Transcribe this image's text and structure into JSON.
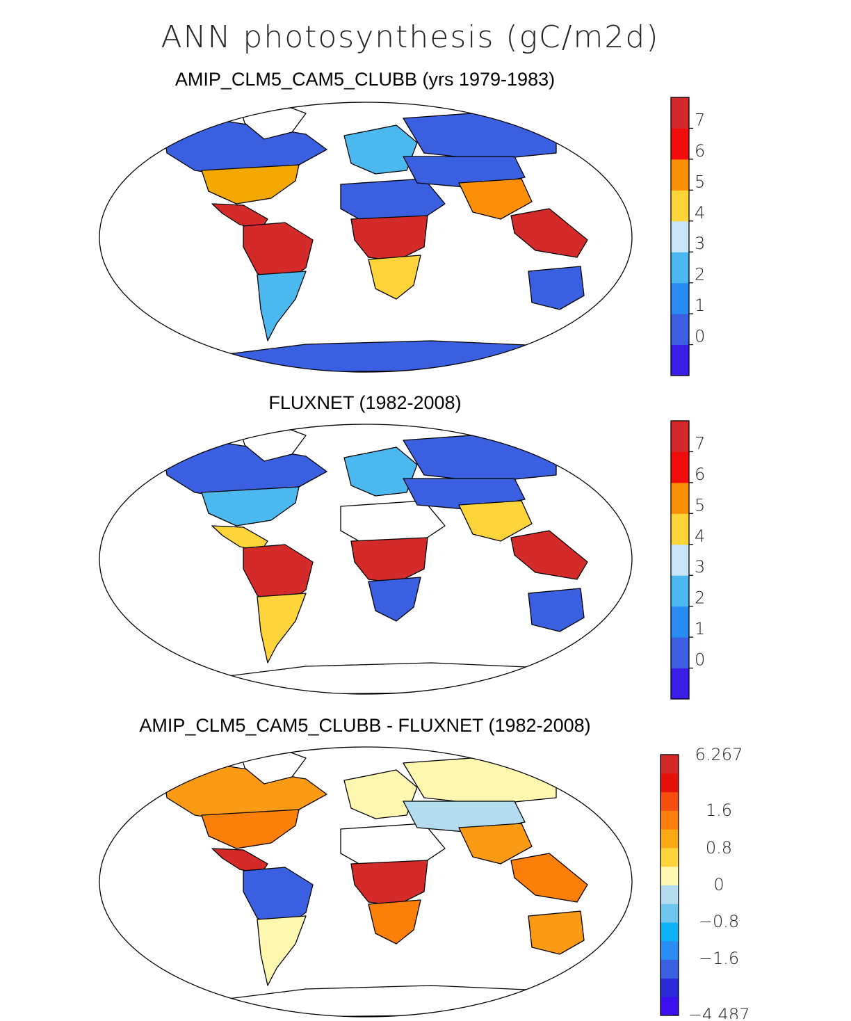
{
  "header": {
    "title": "ANN photosynthesis (gC/m2d)"
  },
  "panels": [
    {
      "id": "model",
      "title": "AMIP_CLM5_CAM5_CLUBB (yrs 1979-1983)",
      "colorbar": {
        "colors": [
          "#3a1de6",
          "#3a5fe0",
          "#2a8cf2",
          "#4cb8f0",
          "#c8e6f7",
          "#fdd53a",
          "#fb8f08",
          "#f20d0d",
          "#d42a2a"
        ],
        "labels": [
          "0",
          "1",
          "2",
          "3",
          "4",
          "5",
          "6",
          "7"
        ]
      },
      "regions": {
        "canada": "#3a5fe0",
        "usa_east": "#f2a800",
        "mexico": "#d42a2a",
        "amazon": "#d42a2a",
        "south_america_south": "#4cb8f0",
        "greenland": "#ffffff",
        "europe": "#4cb8f0",
        "sahara": "#3a5fe0",
        "africa_tropics": "#d42a2a",
        "southern_africa": "#fdd53a",
        "siberia": "#3a5fe0",
        "central_asia": "#3a5fe0",
        "south_asia": "#fb8f08",
        "southeast_asia": "#d42a2a",
        "australia": "#3a5fe0",
        "antarctica": "#3a5fe0"
      }
    },
    {
      "id": "obs",
      "title": "FLUXNET (1982-2008)",
      "colorbar": {
        "colors": [
          "#3a1de6",
          "#3a5fe0",
          "#2a8cf2",
          "#4cb8f0",
          "#c8e6f7",
          "#fdd53a",
          "#fb8f08",
          "#f20d0d",
          "#d42a2a"
        ],
        "labels": [
          "0",
          "1",
          "2",
          "3",
          "4",
          "5",
          "6",
          "7"
        ]
      },
      "regions": {
        "canada": "#3a5fe0",
        "usa_east": "#4cb8f0",
        "mexico": "#fdd53a",
        "amazon": "#d42a2a",
        "south_america_south": "#fdd53a",
        "greenland": "#ffffff",
        "europe": "#4cb8f0",
        "sahara": "#ffffff",
        "africa_tropics": "#d42a2a",
        "southern_africa": "#3a5fe0",
        "siberia": "#3a5fe0",
        "central_asia": "#3a5fe0",
        "south_asia": "#fdd53a",
        "southeast_asia": "#d42a2a",
        "australia": "#3a5fe0",
        "antarctica": "#ffffff"
      }
    },
    {
      "id": "diff",
      "title": "AMIP_CLM5_CAM5_CLUBB - FLUXNET (1982-2008)",
      "colorbar": {
        "colors": [
          "#3c0ef0",
          "#2a2ad8",
          "#3a5fe0",
          "#2a8cf2",
          "#0cb2f8",
          "#6ec6ef",
          "#b3dcef",
          "#fef7b0",
          "#fdd53a",
          "#fbaa14",
          "#fb7f08",
          "#f54e0e",
          "#e6100a",
          "#d42a2a"
        ],
        "labels": [
          "6.267",
          "1.6",
          "0.8",
          "0",
          "−0.8",
          "−1.6",
          "−4.487"
        ]
      },
      "regions": {
        "canada": "#fb9a14",
        "usa_east": "#fb7f08",
        "mexico": "#d42a2a",
        "amazon": "#3a5fe0",
        "south_america_south": "#fef7b0",
        "greenland": "#ffffff",
        "europe": "#fef7b0",
        "sahara": "#ffffff",
        "africa_tropics": "#d42a2a",
        "southern_africa": "#fb7f08",
        "siberia": "#fef7b0",
        "central_asia": "#b3dcef",
        "south_asia": "#fb9a14",
        "southeast_asia": "#fb7f08",
        "australia": "#fb9a14",
        "antarctica": "#ffffff"
      }
    }
  ]
}
